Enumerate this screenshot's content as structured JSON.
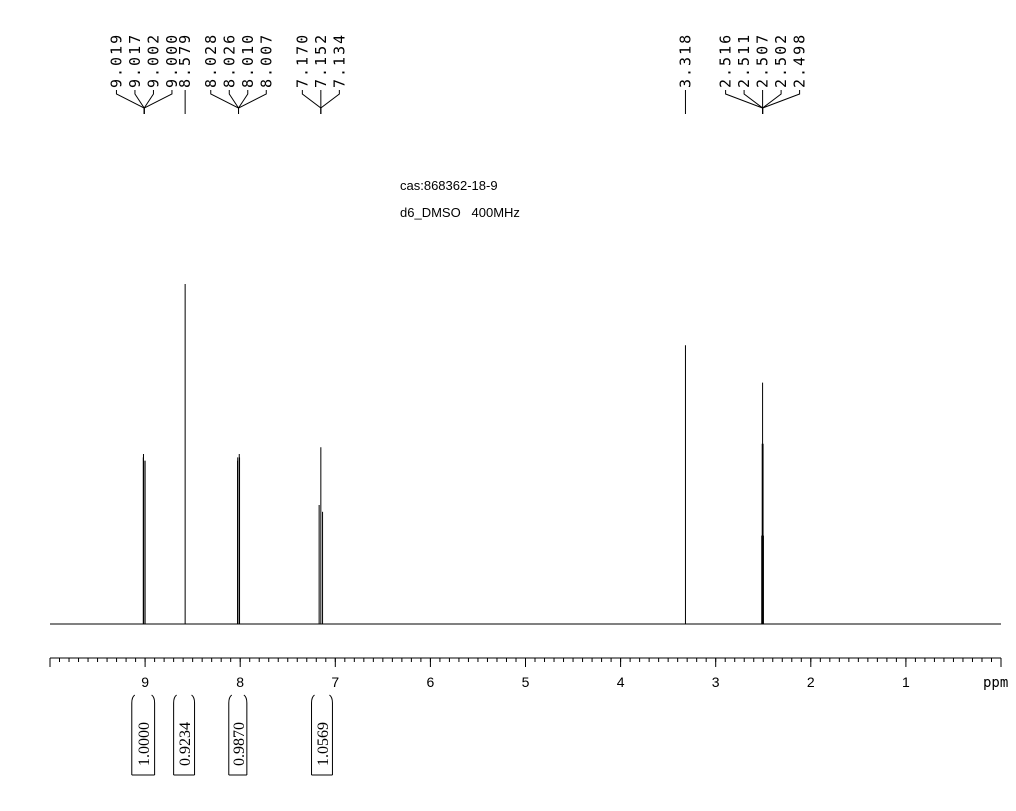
{
  "chart_data": {
    "type": "nmr",
    "title": "cas:868362-18-9",
    "subtitle": "d6_DMSO   400MHz",
    "x_label": "ppm",
    "xlim": [
      10,
      0
    ],
    "xticks": [
      9,
      8,
      7,
      6,
      5,
      4,
      3,
      2,
      1
    ],
    "minor_tick_step": 0.1,
    "ylim": [
      0,
      100
    ],
    "color": "#000000",
    "x": [
      9.019,
      9.017,
      9.002,
      9.0,
      8.579,
      8.028,
      8.026,
      8.01,
      8.007,
      7.17,
      7.152,
      7.134,
      3.318,
      2.516,
      2.511,
      2.507,
      2.502,
      2.498
    ],
    "x_labels": [
      "9.019",
      "9.017",
      "9.002",
      "9.000",
      "8.579",
      "8.028",
      "8.026",
      "8.010",
      "8.007",
      "7.170",
      "7.152",
      "7.134",
      "3.318",
      "2.516",
      "2.511",
      "2.507",
      "2.502",
      "2.498"
    ],
    "label_groups": [
      4,
      1,
      4,
      3,
      1,
      5
    ],
    "values": [
      49,
      50,
      48,
      48,
      100,
      48,
      49,
      50,
      49,
      35,
      52,
      33,
      82,
      26,
      53,
      71,
      53,
      26
    ],
    "integrals": {
      "ranges": [
        [
          9.14,
          8.9
        ],
        [
          8.7,
          8.48
        ],
        [
          8.12,
          7.93
        ],
        [
          7.25,
          7.03
        ]
      ],
      "values": [
        1,
        0.9234,
        0.987,
        1.0569
      ],
      "value_labels": [
        "1.0000",
        "0.9234",
        "0.9870",
        "1.0569"
      ]
    }
  }
}
